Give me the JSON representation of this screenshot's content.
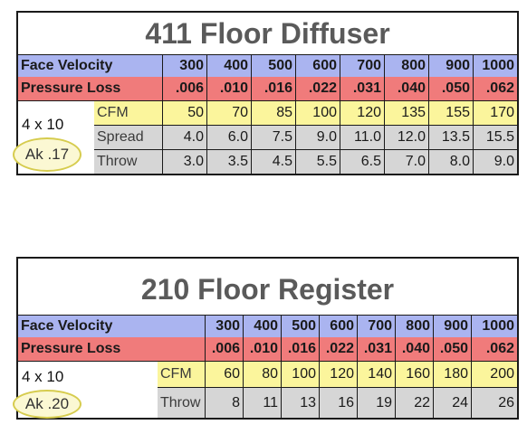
{
  "columns": [
    "300",
    "400",
    "500",
    "600",
    "700",
    "800",
    "900",
    "1000"
  ],
  "diffuser": {
    "title": "411 Floor Diffuser",
    "face_velocity_label": "Face Velocity",
    "pressure_loss_label": "Pressure Loss",
    "pressure_loss": [
      ".006",
      ".010",
      ".016",
      ".022",
      ".031",
      ".040",
      ".050",
      ".062"
    ],
    "size": "4 x 10",
    "ak": "Ak .17",
    "cfm_label": "CFM",
    "cfm": [
      "50",
      "70",
      "85",
      "100",
      "120",
      "135",
      "155",
      "170"
    ],
    "spread_label": "Spread",
    "spread": [
      "4.0",
      "6.0",
      "7.5",
      "9.0",
      "11.0",
      "12.0",
      "13.5",
      "15.5"
    ],
    "throw_label": "Throw",
    "throw": [
      "3.0",
      "3.5",
      "4.5",
      "5.5",
      "6.5",
      "7.0",
      "8.0",
      "9.0"
    ]
  },
  "register": {
    "title": "210 Floor Register",
    "face_velocity_label": "Face Velocity",
    "pressure_loss_label": "Pressure Loss",
    "pressure_loss": [
      ".006",
      ".010",
      ".016",
      ".022",
      ".031",
      ".040",
      ".050",
      ".062"
    ],
    "size": "4 x 10",
    "ak": "Ak .20",
    "cfm_label": "CFM",
    "cfm": [
      "60",
      "80",
      "100",
      "120",
      "140",
      "160",
      "180",
      "200"
    ],
    "throw_label": "Throw",
    "throw": [
      "8",
      "11",
      "13",
      "16",
      "19",
      "22",
      "24",
      "26"
    ]
  },
  "colors": {
    "face_velocity_row": "#aab4f0",
    "pressure_loss_row": "#f07b7b",
    "cfm_row": "#fbf59c",
    "data_row": "#d6d6d6",
    "ak_highlight": "#fbf8d3"
  }
}
